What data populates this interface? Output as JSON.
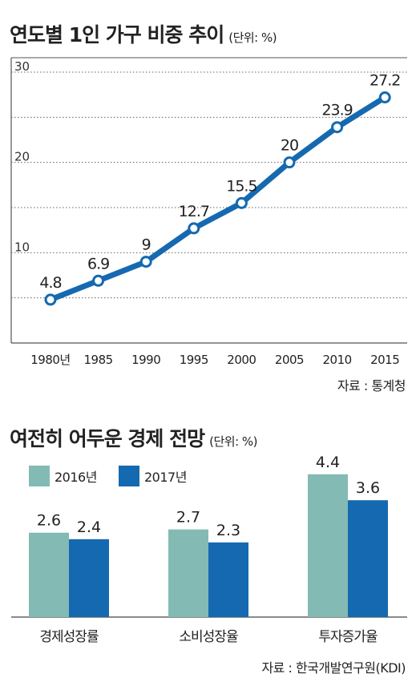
{
  "chart1": {
    "title": "연도별 1인 가구 비중 추이",
    "unit": "(단위: %)",
    "source": "자료 : 통계청",
    "color": "#1569b0"
  },
  "chart2": {
    "title": "여전히 어두운 경제 전망",
    "unit": "(단위: %)",
    "source": "자료 : 한국개발연구원(KDI)",
    "colors": {
      "2016년": "#84bab4",
      "2017년": "#1569b0"
    }
  },
  "chart_data": [
    {
      "type": "line",
      "title": "연도별 1인 가구 비중 추이",
      "x": [
        "1980년",
        "1985",
        "1990",
        "1995",
        "2000",
        "2005",
        "2010",
        "2015"
      ],
      "y": [
        4.8,
        6.9,
        9,
        12.7,
        15.5,
        20,
        23.9,
        27.2
      ],
      "labels": [
        "4.8",
        "6.9",
        "9",
        "12.7",
        "15.5",
        "20",
        "23.9",
        "27.2"
      ],
      "yticks": [
        "10",
        "20",
        "30"
      ],
      "ylim": [
        0,
        30
      ],
      "grid": true
    },
    {
      "type": "bar",
      "title": "여전히 어두운 경제 전망",
      "categories": [
        "경제성장률",
        "소비성장율",
        "투자증가율"
      ],
      "series": [
        {
          "name": "2016년",
          "values": [
            2.6,
            2.7,
            4.4
          ],
          "labels": [
            "2.6",
            "2.7",
            "4.4"
          ]
        },
        {
          "name": "2017년",
          "values": [
            2.4,
            2.3,
            3.6
          ],
          "labels": [
            "2.4",
            "2.3",
            "3.6"
          ]
        }
      ],
      "legend": "top-left"
    }
  ]
}
